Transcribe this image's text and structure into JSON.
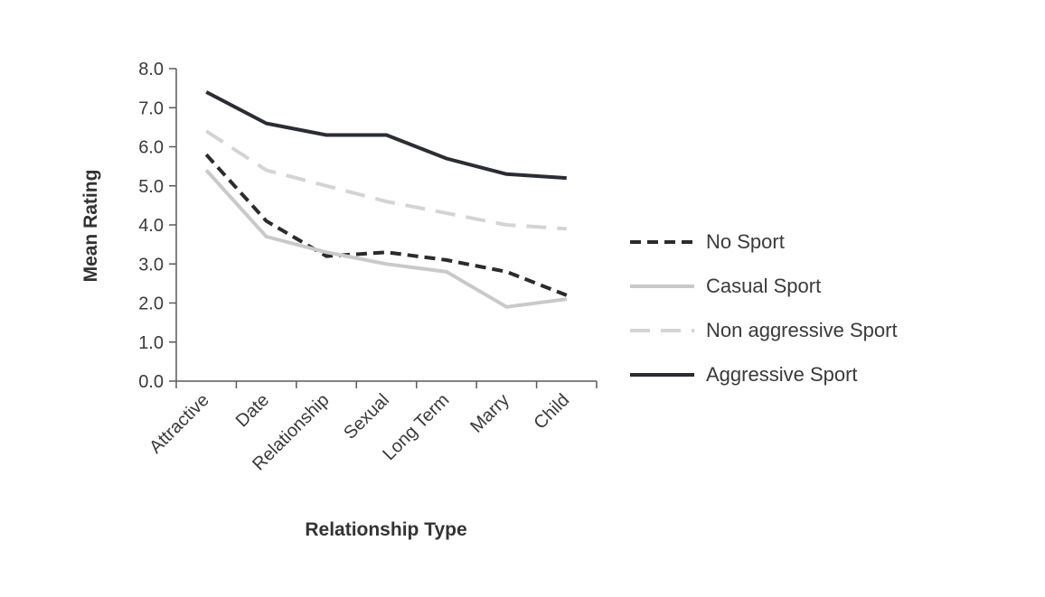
{
  "chart_data": {
    "type": "line",
    "title": "",
    "xlabel": "Relationship Type",
    "ylabel": "Mean Rating",
    "categories": [
      "Attractive",
      "Date",
      "Relationship",
      "Sexual",
      "Long Term",
      "Marry",
      "Child"
    ],
    "ylim": [
      0,
      8
    ],
    "yticks": [
      0,
      1,
      2,
      3,
      4,
      5,
      6,
      7,
      8
    ],
    "ytick_labels": [
      "0.0",
      "1.0",
      "2.0",
      "3.0",
      "4.0",
      "5.0",
      "6.0",
      "7.0",
      "8.0"
    ],
    "grid": false,
    "legend_position": "right",
    "series": [
      {
        "name": "No Sport",
        "values": [
          5.8,
          4.1,
          3.2,
          3.3,
          3.1,
          2.8,
          2.2
        ],
        "color": "#2b2b2b",
        "style": "dashed"
      },
      {
        "name": "Casual Sport",
        "values": [
          5.4,
          3.7,
          3.3,
          3.0,
          2.8,
          1.9,
          2.1
        ],
        "color": "#c9c9c9",
        "style": "solid"
      },
      {
        "name": "Non aggressive Sport",
        "values": [
          6.4,
          5.4,
          5.0,
          4.6,
          4.3,
          4.0,
          3.9
        ],
        "color": "#d4d4d4",
        "style": "dashed"
      },
      {
        "name": "Aggressive Sport",
        "values": [
          7.4,
          6.6,
          6.3,
          6.3,
          5.7,
          5.3,
          5.2
        ],
        "color": "#2a2d33",
        "style": "solid"
      }
    ]
  }
}
